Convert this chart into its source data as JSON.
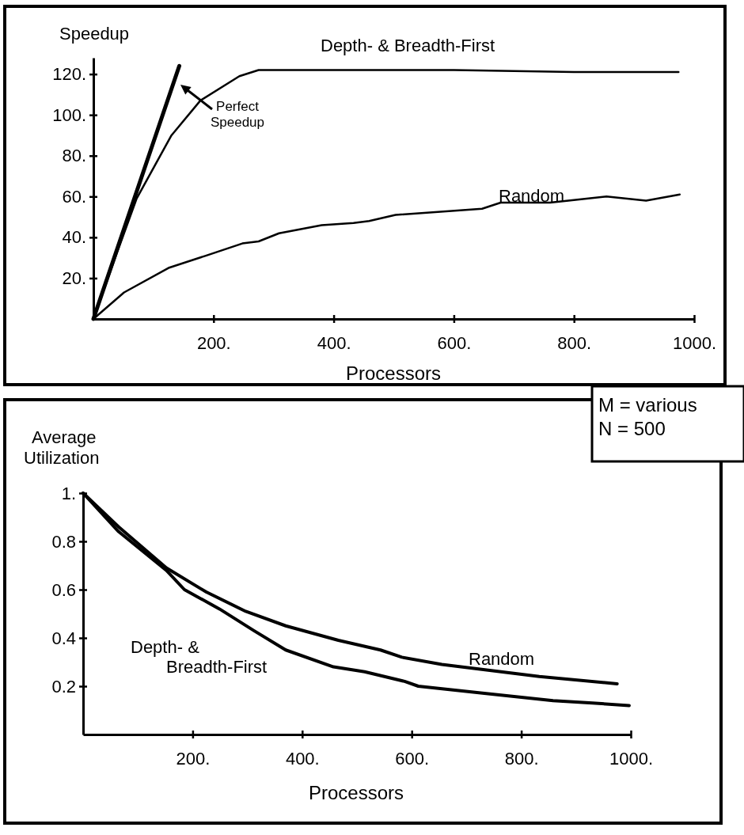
{
  "chart_data": [
    {
      "type": "line",
      "ylabel": "Speedup",
      "xlabel": "Processors",
      "xlim": [
        0,
        1000
      ],
      "ylim": [
        0,
        128
      ],
      "xticks": [
        {
          "value": 200,
          "label": "200."
        },
        {
          "value": 400,
          "label": "400."
        },
        {
          "value": 600,
          "label": "600."
        },
        {
          "value": 800,
          "label": "800."
        },
        {
          "value": 1000,
          "label": "1000."
        }
      ],
      "yticks": [
        {
          "value": 20,
          "label": "20."
        },
        {
          "value": 40,
          "label": "40."
        },
        {
          "value": 60,
          "label": "60."
        },
        {
          "value": 80,
          "label": "80."
        },
        {
          "value": 100,
          "label": "100."
        },
        {
          "value": 120,
          "label": "120."
        }
      ],
      "grid": false,
      "legend": false,
      "marker": "none",
      "line_style": "solid",
      "series": [
        {
          "name": "Perfect Speedup",
          "color": "#000000",
          "x": [
            0,
            143
          ],
          "values": [
            0,
            124
          ]
        },
        {
          "name": "Depth- & Breadth-First",
          "color": "#000000",
          "x": [
            0,
            40,
            72,
            130,
            178,
            243,
            275,
            400,
            600,
            800,
            974
          ],
          "values": [
            0,
            33,
            59,
            90,
            107,
            119,
            122,
            122,
            122,
            121,
            121
          ]
        },
        {
          "name": "Random",
          "color": "#000000",
          "x": [
            0,
            51,
            125,
            187,
            248,
            275,
            309,
            380,
            433,
            459,
            503,
            647,
            678,
            760,
            854,
            920,
            976
          ],
          "values": [
            0,
            13,
            25,
            31,
            37,
            38,
            42,
            46,
            47,
            48,
            51,
            54,
            57,
            57,
            60,
            58,
            61
          ]
        }
      ]
    },
    {
      "type": "line",
      "ylabel": "Average Utilization",
      "xlabel": "Processors",
      "xlim": [
        0,
        1000
      ],
      "ylim": [
        0,
        1
      ],
      "xticks": [
        {
          "value": 200,
          "label": "200."
        },
        {
          "value": 400,
          "label": "400."
        },
        {
          "value": 600,
          "label": "600."
        },
        {
          "value": 800,
          "label": "800."
        },
        {
          "value": 1000,
          "label": "1000."
        }
      ],
      "yticks": [
        0.2,
        0.4,
        0.6,
        0.8,
        {
          "value": 1,
          "label": "1."
        }
      ],
      "grid": false,
      "legend": false,
      "marker": "none",
      "line_style": "solid",
      "annotations": [
        "M = various",
        "N = 500"
      ],
      "series": [
        {
          "name": "Depth- & Breadth-First",
          "color": "#000000",
          "x": [
            0,
            65,
            152,
            185,
            249,
            312,
            370,
            457,
            514,
            587,
            612,
            736,
            858,
            930,
            997
          ],
          "values": [
            1,
            0.84,
            0.68,
            0.6,
            0.52,
            0.43,
            0.35,
            0.28,
            0.26,
            0.22,
            0.2,
            0.17,
            0.14,
            0.13,
            0.12
          ]
        },
        {
          "name": "Random",
          "color": "#000000",
          "x": [
            0,
            65,
            152,
            225,
            297,
            370,
            466,
            543,
            582,
            655,
            833,
            975
          ],
          "values": [
            1,
            0.86,
            0.69,
            0.59,
            0.51,
            0.45,
            0.39,
            0.35,
            0.32,
            0.29,
            0.24,
            0.21
          ]
        }
      ]
    }
  ]
}
